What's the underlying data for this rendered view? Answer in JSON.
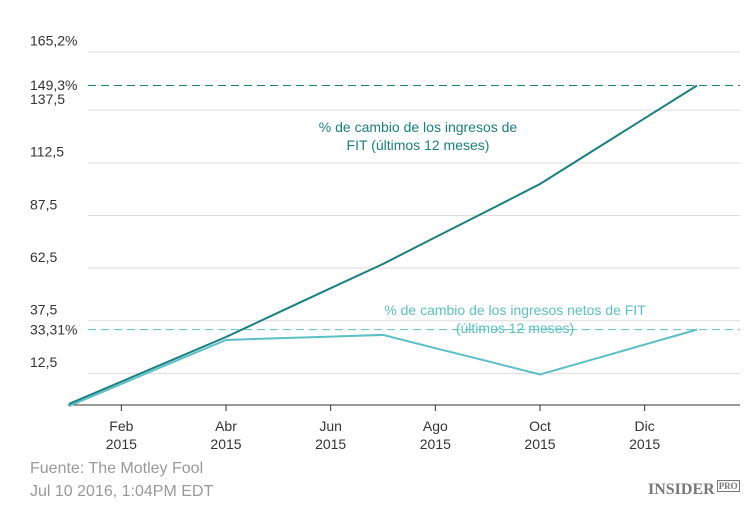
{
  "chart_data": {
    "type": "line",
    "categories": [
      null,
      "Feb 2015",
      null,
      "Abr 2015",
      null,
      "Jun 2015",
      null,
      "Ago 2015",
      null,
      "Oct 2015",
      null,
      "Dic 2015",
      null
    ],
    "series": [
      {
        "name": "% de cambio de los ingresos de FIT (últimos 12 meses)",
        "color": "#1a7f82",
        "values": [
          -2,
          8.6,
          19.2,
          29.8,
          41.4,
          53,
          64.5,
          77.2,
          89.8,
          102.5,
          118.1,
          133.7,
          149.3
        ]
      },
      {
        "name": "% de cambio de los ingresos netos de FIT (últimos 12 meses)",
        "color": "#5bbfc6",
        "values": [
          -3,
          7.5,
          18,
          28.4,
          29.2,
          30,
          30.8,
          24.5,
          18.3,
          12,
          19.1,
          26.2,
          33.31
        ]
      }
    ],
    "ylim": [
      -2.5,
      165.2
    ],
    "yticks": [
      {
        "value": 12.5,
        "label": "12,5"
      },
      {
        "value": 37.5,
        "label": "37,5"
      },
      {
        "value": 62.5,
        "label": "62,5"
      },
      {
        "value": 87.5,
        "label": "87,5"
      },
      {
        "value": 112.5,
        "label": "112,5"
      },
      {
        "value": 137.5,
        "label": "137,5"
      },
      {
        "value": 165.2,
        "label": "165,2%"
      }
    ],
    "grid": true,
    "annotations": [
      {
        "label": "149,3%",
        "value": 149.3,
        "color": "#1a7f82"
      },
      {
        "label": "33,31%",
        "value": 33.31,
        "color": "#5bbfc6"
      }
    ],
    "source": "Fuente: The Motley Fool",
    "date": "Jul 10 2016, 1:04PM EDT",
    "logo": "INSIDER",
    "logo_suffix": "PRO"
  }
}
